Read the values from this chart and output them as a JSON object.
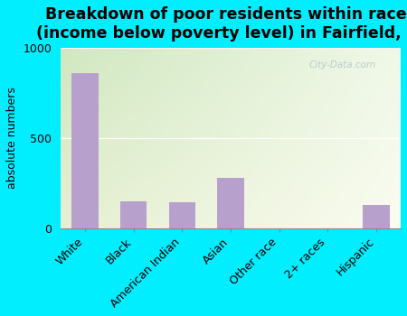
{
  "title": "Breakdown of poor residents within races\n(income below poverty level) in Fairfield, IA",
  "categories": [
    "White",
    "Black",
    "American Indian",
    "Asian",
    "Other race",
    "2+ races",
    "Hispanic"
  ],
  "values": [
    860,
    150,
    145,
    280,
    0,
    0,
    130
  ],
  "bar_color": "#b8a0cc",
  "ylabel": "absolute numbers",
  "ylim": [
    0,
    1000
  ],
  "yticks": [
    0,
    500,
    1000
  ],
  "background_outer": "#00eeff",
  "background_inner_topleft": "#d0e8c0",
  "background_inner_right": "#f0f4e8",
  "background_inner_bottom": "#f8f8f0",
  "title_fontsize": 12.5,
  "label_fontsize": 9,
  "tick_fontsize": 9,
  "watermark": "City-Data.com"
}
